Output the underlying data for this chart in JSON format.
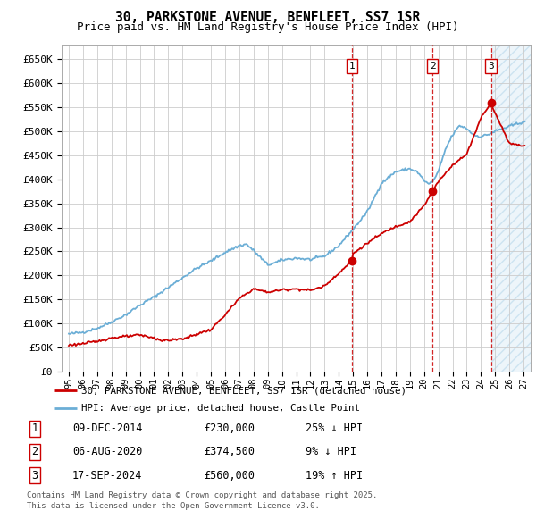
{
  "title": "30, PARKSTONE AVENUE, BENFLEET, SS7 1SR",
  "subtitle": "Price paid vs. HM Land Registry's House Price Index (HPI)",
  "ylim": [
    0,
    680000
  ],
  "yticks": [
    0,
    50000,
    100000,
    150000,
    200000,
    250000,
    300000,
    350000,
    400000,
    450000,
    500000,
    550000,
    600000,
    650000
  ],
  "ytick_labels": [
    "£0",
    "£50K",
    "£100K",
    "£150K",
    "£200K",
    "£250K",
    "£300K",
    "£350K",
    "£400K",
    "£450K",
    "£500K",
    "£550K",
    "£600K",
    "£650K"
  ],
  "hpi_color": "#6baed6",
  "price_color": "#cc0000",
  "vline_color": "#cc0000",
  "background_color": "#ffffff",
  "grid_color": "#cccccc",
  "sale_points": [
    {
      "date_num": 2014.94,
      "price": 230000,
      "label": "1"
    },
    {
      "date_num": 2020.59,
      "price": 374500,
      "label": "2"
    },
    {
      "date_num": 2024.71,
      "price": 560000,
      "label": "3"
    }
  ],
  "legend_line1": "30, PARKSTONE AVENUE, BENFLEET, SS7 1SR (detached house)",
  "legend_line2": "HPI: Average price, detached house, Castle Point",
  "legend_color1": "#cc0000",
  "legend_color2": "#6baed6",
  "table_rows": [
    {
      "num": "1",
      "date": "09-DEC-2014",
      "price": "£230,000",
      "pct": "25%",
      "dir": "↓",
      "vs": "HPI"
    },
    {
      "num": "2",
      "date": "06-AUG-2020",
      "price": "£374,500",
      "pct": "9%",
      "dir": "↓",
      "vs": "HPI"
    },
    {
      "num": "3",
      "date": "17-SEP-2024",
      "price": "£560,000",
      "pct": "19%",
      "dir": "↑",
      "vs": "HPI"
    }
  ],
  "footnote1": "Contains HM Land Registry data © Crown copyright and database right 2025.",
  "footnote2": "This data is licensed under the Open Government Licence v3.0.",
  "xlim": [
    1994.5,
    2027.5
  ],
  "xticks": [
    1995,
    1996,
    1997,
    1998,
    1999,
    2000,
    2001,
    2002,
    2003,
    2004,
    2005,
    2006,
    2007,
    2008,
    2009,
    2010,
    2011,
    2012,
    2013,
    2014,
    2015,
    2016,
    2017,
    2018,
    2019,
    2020,
    2021,
    2022,
    2023,
    2024,
    2025,
    2026,
    2027
  ],
  "shade_start": 2024.71,
  "shade_color": "#6baed6",
  "shade_alpha": 0.12
}
